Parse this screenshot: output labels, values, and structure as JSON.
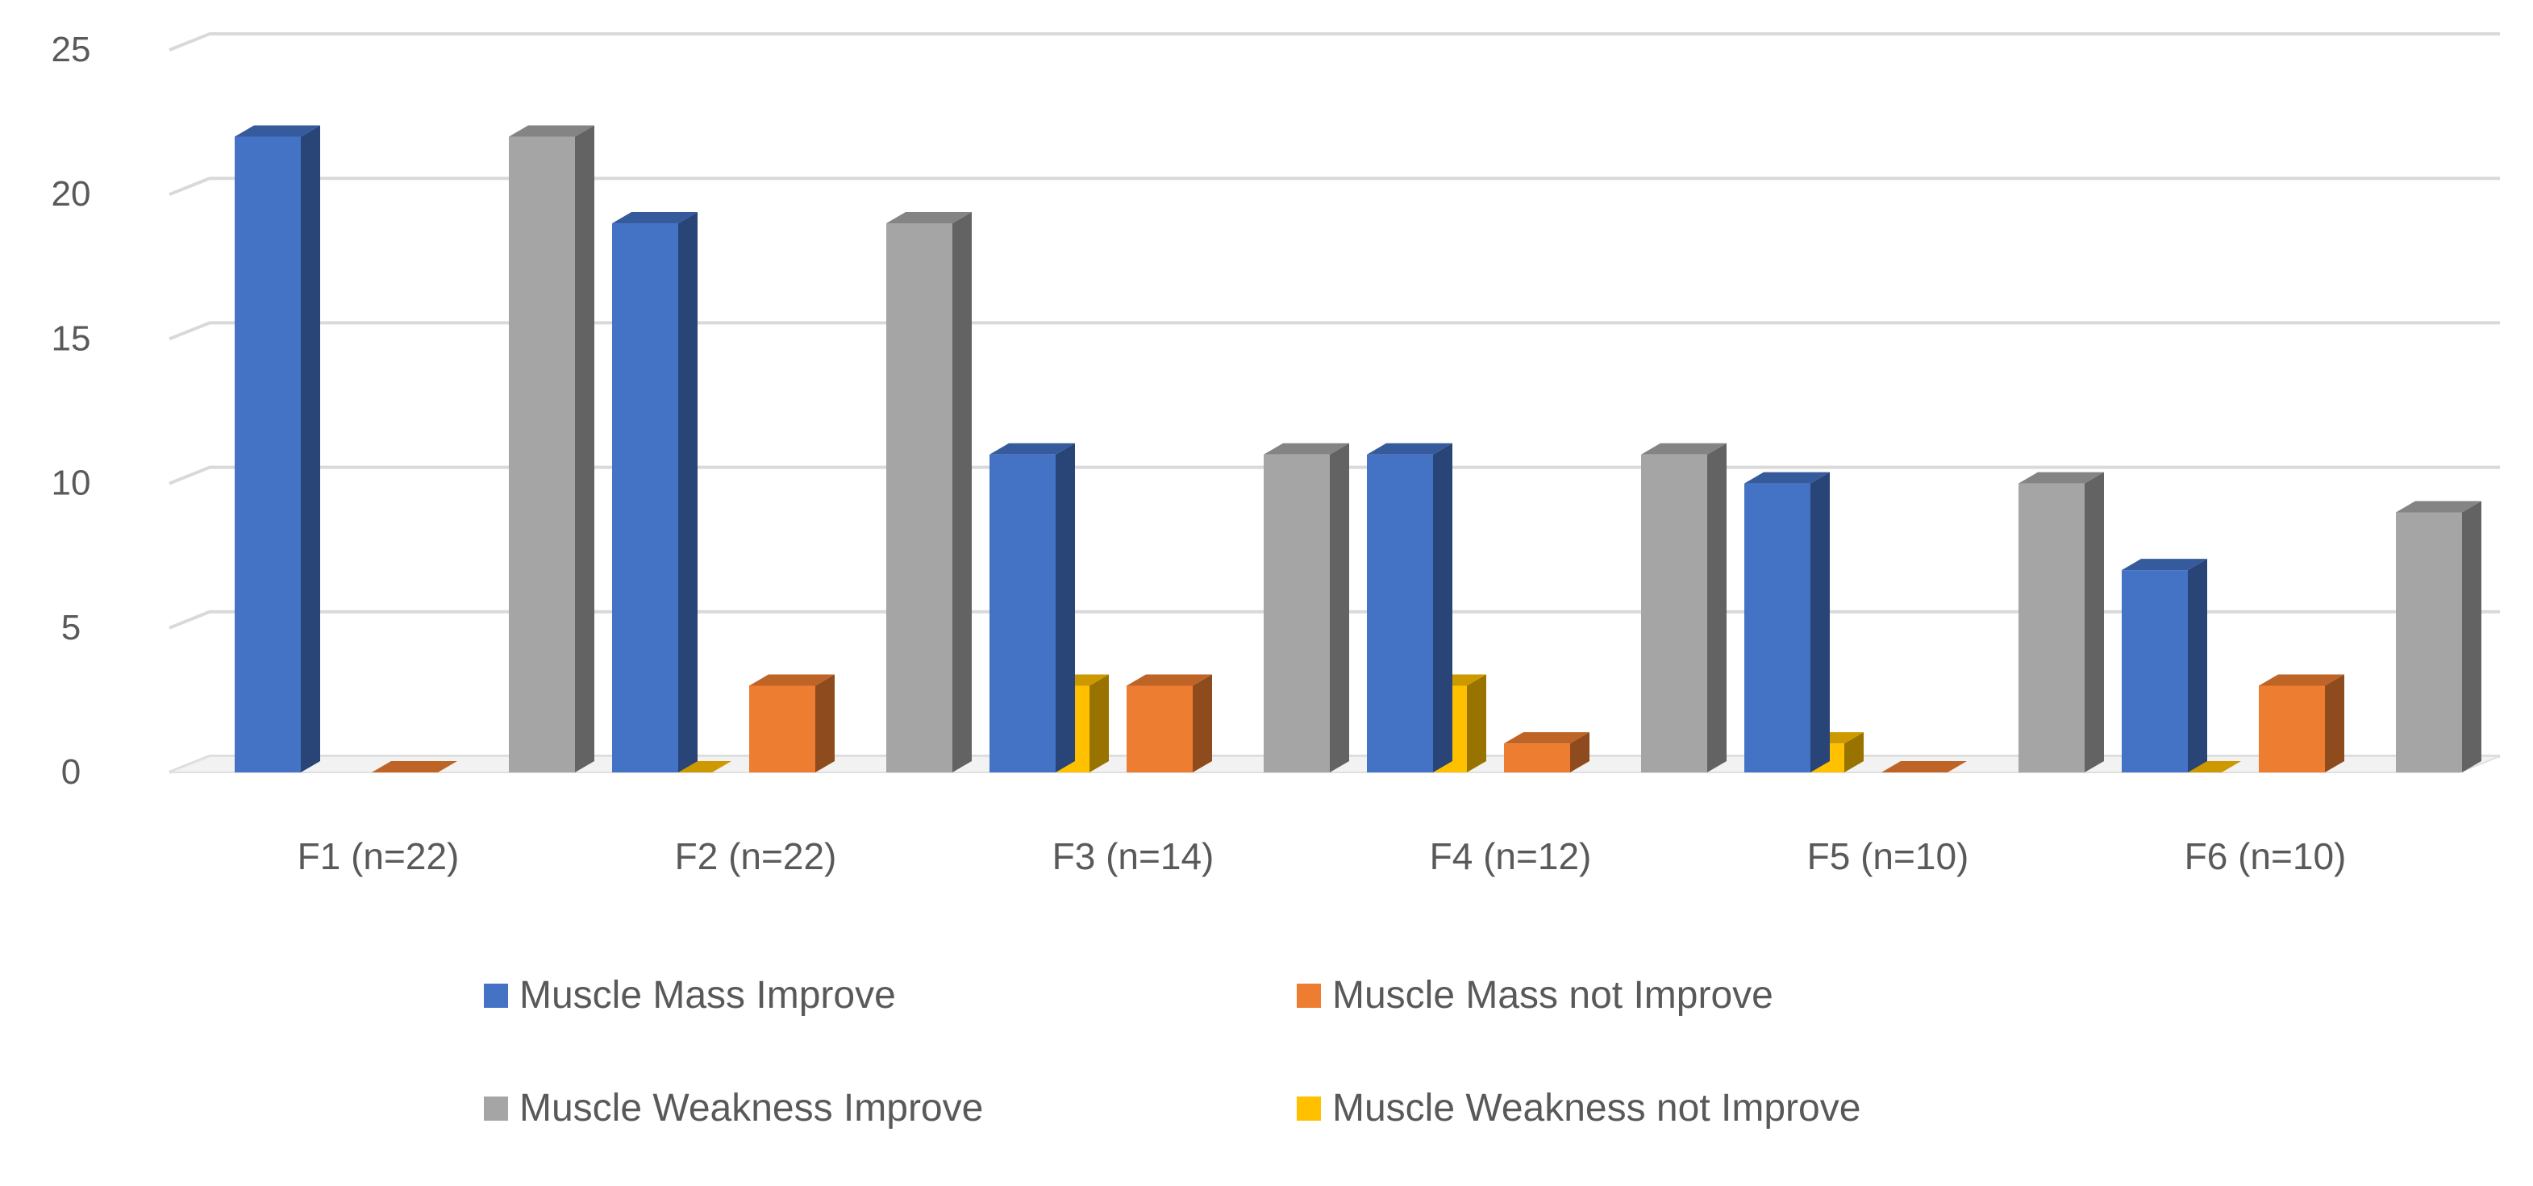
{
  "chart_data": {
    "type": "bar",
    "title": "",
    "xlabel": "",
    "ylabel": "",
    "ylim": [
      0,
      25
    ],
    "yticks": [
      0,
      5,
      10,
      15,
      20,
      25
    ],
    "grid": true,
    "legend_position": "bottom",
    "categories": [
      "F1 (n=22)",
      "F2 (n=22)",
      "F3 (n=14)",
      "F4 (n=12)",
      "F5 (n=10)",
      "F6 (n=10)"
    ],
    "series": [
      {
        "name": "Muscle Mass Improve",
        "color": "#4472C4",
        "values": [
          22,
          19,
          11,
          11,
          10,
          7
        ]
      },
      {
        "name": "Muscle Mass not Improve",
        "color": "#ED7D31",
        "values": [
          0,
          3,
          3,
          1,
          0,
          3
        ]
      },
      {
        "name": "Muscle Weakness Improve",
        "color": "#A5A5A5",
        "values": [
          22,
          19,
          11,
          11,
          10,
          9
        ]
      },
      {
        "name": "Muscle Weakness not Improve",
        "color": "#FFC000",
        "values": [
          0,
          3,
          3,
          1,
          0,
          1
        ]
      }
    ]
  }
}
